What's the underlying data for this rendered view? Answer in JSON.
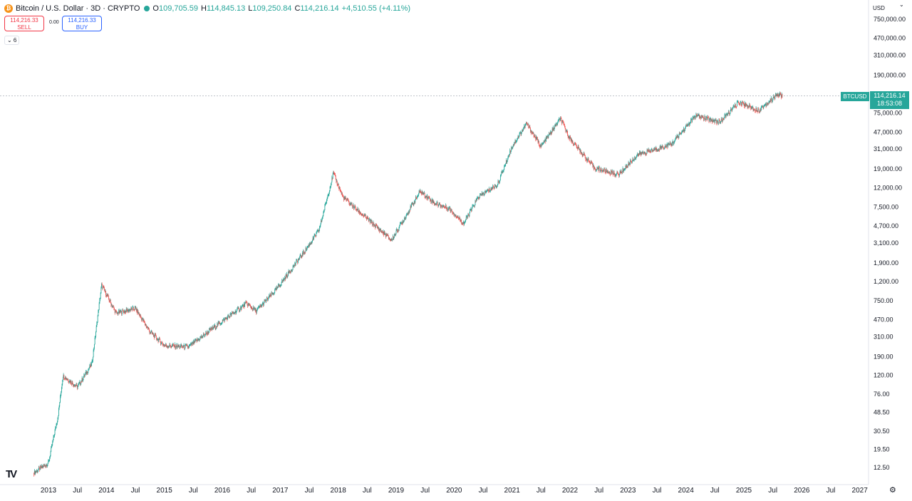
{
  "header": {
    "symbol_icon": "₿",
    "title": "Bitcoin / U.S. Dollar · 3D · CRYPTO",
    "open_label": "O",
    "open": "109,705.59",
    "high_label": "H",
    "high": "114,845.13",
    "low_label": "L",
    "low": "109,250.84",
    "close_label": "C",
    "close": "114,216.14",
    "change": "+4,510.55 (+4.11%)"
  },
  "trade": {
    "sell_price": "114,216.33",
    "sell_label": "SELL",
    "spread": "0.00",
    "buy_price": "114,216.33",
    "buy_label": "BUY"
  },
  "indicators_toggle": "⌄ 6",
  "price_axis": {
    "currency": "USD"
  },
  "last_price": {
    "ticker": "BTCUSD",
    "price": "114,216.14",
    "countdown": "18:53:08"
  },
  "colors": {
    "up": "#26a69a",
    "down": "#ef5350",
    "price_tag": "#26a69a"
  },
  "icons": {
    "logo": "tradingview-logo-icon",
    "settings": "settings-icon",
    "currency_menu": "chevron-down-icon"
  },
  "chart_data": {
    "type": "candlestick",
    "title": "Bitcoin / U.S. Dollar · 3D · CRYPTO",
    "y_scale": "log",
    "y_ticks": [
      "750,000.00",
      "470,000.00",
      "310,000.00",
      "190,000.00",
      "75,000.00",
      "47,000.00",
      "31,000.00",
      "19,000.00",
      "12,000.00",
      "7,500.00",
      "4,700.00",
      "3,100.00",
      "1,900.00",
      "1,200.00",
      "750.00",
      "470.00",
      "310.00",
      "190.00",
      "120.00",
      "76.00",
      "48.50",
      "30.50",
      "19.50",
      "12.50"
    ],
    "x_ticks": [
      "2013",
      "Jul",
      "2014",
      "Jul",
      "2015",
      "Jul",
      "2016",
      "Jul",
      "2017",
      "Jul",
      "2018",
      "Jul",
      "2019",
      "Jul",
      "2020",
      "Jul",
      "2021",
      "Jul",
      "2022",
      "Jul",
      "2023",
      "Jul",
      "2024",
      "Jul",
      "2025",
      "Jul",
      "2026",
      "Jul",
      "2027"
    ],
    "x": [
      "2012-10",
      "2013-01",
      "2013-03",
      "2013-04",
      "2013-07",
      "2013-10",
      "2013-12",
      "2014-03",
      "2014-07",
      "2014-10",
      "2015-01",
      "2015-06",
      "2015-11",
      "2016-06",
      "2016-08",
      "2016-12",
      "2017-06",
      "2017-09",
      "2017-12",
      "2018-02",
      "2018-06",
      "2018-11",
      "2018-12",
      "2019-06",
      "2019-09",
      "2019-12",
      "2020-03",
      "2020-06",
      "2020-10",
      "2021-01",
      "2021-04",
      "2021-07",
      "2021-11",
      "2022-01",
      "2022-06",
      "2022-11",
      "2023-03",
      "2023-06",
      "2023-10",
      "2024-03",
      "2024-08",
      "2024-12",
      "2025-04",
      "2025-08",
      "2025-09"
    ],
    "close": [
      11,
      14,
      45,
      120,
      90,
      160,
      1100,
      550,
      620,
      350,
      250,
      240,
      380,
      700,
      580,
      960,
      2500,
      4200,
      17000,
      9500,
      6200,
      3700,
      3300,
      11000,
      8200,
      7200,
      5000,
      9500,
      13000,
      33000,
      58000,
      33000,
      65000,
      40000,
      19500,
      16500,
      27000,
      30000,
      35000,
      70000,
      60000,
      98000,
      80000,
      118000,
      114216
    ]
  }
}
